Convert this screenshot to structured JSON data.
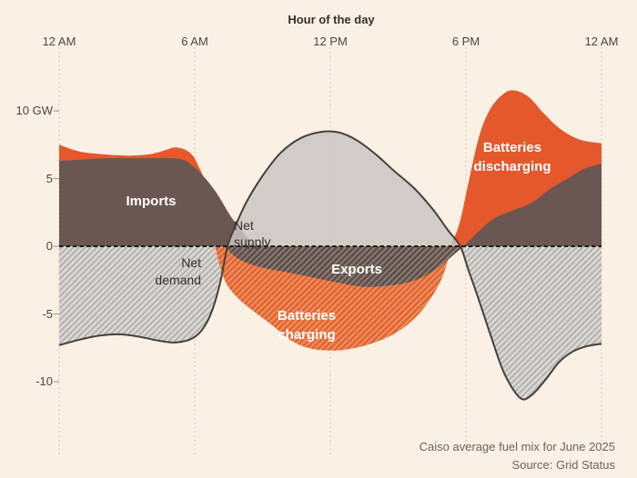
{
  "axis": {
    "title": "Hour of the day",
    "x_ticks": [
      "12 AM",
      "6 AM",
      "12 PM",
      "6 PM",
      "12 AM"
    ],
    "y_ticks": [
      "10 GW",
      "5",
      "0",
      "-5",
      "-10"
    ]
  },
  "labels": {
    "imports": "Imports",
    "net_supply_1": "Net",
    "net_supply_2": "supply",
    "net_demand_1": "Net",
    "net_demand_2": "demand",
    "exports": "Exports",
    "charging_1": "Batteries",
    "charging_2": "charging",
    "discharging_1": "Batteries",
    "discharging_2": "discharging"
  },
  "caption": {
    "line1": "Caiso average fuel mix for June 2025",
    "line2": "Source: Grid Status"
  },
  "colors": {
    "background": "#FAF0E4",
    "solid_orange": "#E4582C",
    "solid_brown": "#6B5751",
    "solid_gray": "#C9C6C2",
    "outline": "#44403B",
    "zero_line": "#1F1B18",
    "gridline": "#C9BDB0",
    "hatch_gray_bg": "#DBD9D5",
    "hatch_gray_stripe": "#B5B2AF",
    "hatch_orange_bg": "#E2642F",
    "hatch_orange_stripe": "#EC8E62",
    "hatch_brown_bg": "#5F4F49",
    "hatch_brown_stripe": "#8D7E77",
    "text_white": "#FFFFFF",
    "text_dark": "#36322E",
    "text_axis": "#4C4641",
    "text_caption": "#6B645E"
  },
  "chart_data": {
    "type": "area",
    "title": "Caiso average fuel mix for June 2025",
    "xlabel": "Hour of the day",
    "ylabel": "GW",
    "x_unit": "hour (0-24)",
    "y_unit": "GW",
    "x_ticks_hours": [
      0,
      6,
      12,
      18,
      24
    ],
    "y_ticks_gw": [
      10,
      5,
      0,
      -5,
      -10
    ],
    "x_range": [
      0,
      24
    ],
    "y_range": [
      -12,
      12
    ],
    "grid": "vertical dotted lines at 6h intervals, dashed zero line",
    "legend": "labels drawn inside areas",
    "stacking_note": "Each region is a boundary stacked from zero: positive stack = imports(brown) then batteries discharging(orange) on top; negative stack = exports(brown hatch) over batteries charging(orange hatch); gray = net supply(solid, above 0)/net demand(hatched, below 0) with dark outline.",
    "regions": [
      {
        "name": "net-demand-morning",
        "series": "Net demand",
        "fill": "hatch_gray",
        "outline": true,
        "points": [
          [
            0,
            -7.3
          ],
          [
            0.9,
            -6.9
          ],
          [
            1.8,
            -6.6
          ],
          [
            2.7,
            -6.5
          ],
          [
            3.6,
            -6.7
          ],
          [
            4.5,
            -7.0
          ],
          [
            5.2,
            -7.1
          ],
          [
            5.9,
            -6.8
          ],
          [
            6.4,
            -6.0
          ],
          [
            6.8,
            -4.6
          ],
          [
            7.15,
            -2.5
          ],
          [
            7.45,
            0
          ]
        ]
      },
      {
        "name": "net-demand-evening",
        "series": "Net demand",
        "fill": "hatch_gray",
        "outline": true,
        "points": [
          [
            17.75,
            0
          ],
          [
            18.1,
            -1.7
          ],
          [
            18.6,
            -4.1
          ],
          [
            19.1,
            -6.6
          ],
          [
            19.7,
            -9.4
          ],
          [
            20.4,
            -11.2
          ],
          [
            20.9,
            -11.0
          ],
          [
            21.5,
            -9.9
          ],
          [
            22.1,
            -8.6
          ],
          [
            22.7,
            -7.8
          ],
          [
            23.3,
            -7.4
          ],
          [
            24,
            -7.2
          ]
        ]
      },
      {
        "name": "batteries-discharging-morning-top",
        "series": "Batteries discharging (stack top)",
        "fill": "solid_orange",
        "points": [
          [
            0,
            7.5
          ],
          [
            0.9,
            7.0
          ],
          [
            1.9,
            6.8
          ],
          [
            3,
            6.7
          ],
          [
            4,
            6.8
          ],
          [
            4.7,
            7.1
          ],
          [
            5.2,
            7.3
          ],
          [
            5.8,
            6.9
          ],
          [
            6.2,
            5.8
          ],
          [
            6.6,
            4.0
          ],
          [
            7.0,
            0
          ]
        ]
      },
      {
        "name": "batteries-discharging-evening-top",
        "series": "Batteries discharging (stack top)",
        "fill": "solid_orange",
        "points": [
          [
            17.3,
            0
          ],
          [
            17.7,
            1.6
          ],
          [
            18.1,
            4.6
          ],
          [
            18.6,
            8.2
          ],
          [
            19.1,
            10.2
          ],
          [
            19.7,
            11.3
          ],
          [
            20.2,
            11.5
          ],
          [
            20.8,
            11.0
          ],
          [
            21.4,
            9.9
          ],
          [
            22.0,
            8.9
          ],
          [
            22.6,
            8.2
          ],
          [
            23.2,
            7.8
          ],
          [
            24,
            7.6
          ]
        ]
      },
      {
        "name": "batteries-charging",
        "series": "Batteries charging (stack bottom)",
        "fill": "hatch_orange",
        "points": [
          [
            6.9,
            0
          ],
          [
            7.15,
            -1.7
          ],
          [
            7.45,
            -2.9
          ],
          [
            7.95,
            -3.9
          ],
          [
            8.6,
            -4.8
          ],
          [
            9.4,
            -5.8
          ],
          [
            10.2,
            -6.9
          ],
          [
            11.0,
            -7.5
          ],
          [
            11.9,
            -7.7
          ],
          [
            12.8,
            -7.6
          ],
          [
            13.8,
            -7.2
          ],
          [
            14.9,
            -6.4
          ],
          [
            15.8,
            -5.2
          ],
          [
            16.5,
            -3.7
          ],
          [
            17.0,
            -2.1
          ],
          [
            17.35,
            0
          ]
        ]
      },
      {
        "name": "imports-morning",
        "series": "Imports",
        "fill": "solid_brown",
        "points": [
          [
            0,
            6.3
          ],
          [
            1,
            6.4
          ],
          [
            2,
            6.5
          ],
          [
            3,
            6.5
          ],
          [
            4,
            6.5
          ],
          [
            5,
            6.5
          ],
          [
            5.6,
            6.3
          ],
          [
            6.2,
            5.5
          ],
          [
            6.9,
            4.1
          ],
          [
            7.6,
            2.2
          ],
          [
            8.2,
            0.9
          ],
          [
            8.7,
            0
          ]
        ]
      },
      {
        "name": "imports-evening",
        "series": "Imports",
        "fill": "solid_brown",
        "points": [
          [
            17.9,
            0
          ],
          [
            18.5,
            1.0
          ],
          [
            19.2,
            2.0
          ],
          [
            20.0,
            2.6
          ],
          [
            20.9,
            3.2
          ],
          [
            21.7,
            4.2
          ],
          [
            22.5,
            5.0
          ],
          [
            23.2,
            5.7
          ],
          [
            24,
            6.1
          ]
        ]
      },
      {
        "name": "exports",
        "series": "Exports",
        "fill": "hatch_brown",
        "points": [
          [
            7.3,
            0
          ],
          [
            7.9,
            -0.9
          ],
          [
            8.8,
            -1.5
          ],
          [
            10.0,
            -1.9
          ],
          [
            11.2,
            -2.3
          ],
          [
            12.4,
            -2.7
          ],
          [
            13.5,
            -3.0
          ],
          [
            14.6,
            -2.9
          ],
          [
            15.6,
            -2.6
          ],
          [
            16.4,
            -2.0
          ],
          [
            17.2,
            -1.0
          ],
          [
            17.9,
            0
          ]
        ]
      },
      {
        "name": "net-supply",
        "series": "Net supply",
        "fill": "solid_gray",
        "opacity": 0.85,
        "outline": true,
        "points": [
          [
            7.45,
            0
          ],
          [
            7.8,
            1.5
          ],
          [
            8.3,
            3.3
          ],
          [
            9.0,
            5.2
          ],
          [
            9.8,
            6.9
          ],
          [
            10.7,
            8.0
          ],
          [
            11.6,
            8.45
          ],
          [
            12.4,
            8.4
          ],
          [
            13.2,
            7.8
          ],
          [
            14.0,
            6.8
          ],
          [
            14.8,
            5.6
          ],
          [
            15.7,
            4.3
          ],
          [
            16.5,
            2.8
          ],
          [
            17.2,
            1.2
          ],
          [
            17.75,
            0
          ]
        ]
      }
    ]
  }
}
